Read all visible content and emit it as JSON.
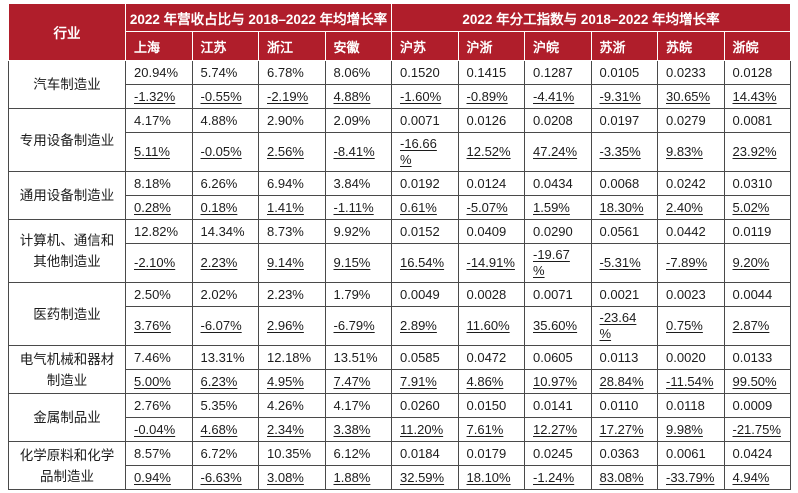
{
  "accent_color": "#b01e2b",
  "border_color": "#4a4a4a",
  "header": {
    "industry_label": "行业",
    "group1": "2022 年营收占比与 2018–2022 年均增长率",
    "group2": "2022 年分工指数与 2018–2022 年均增长率",
    "group1_cols": [
      "上海",
      "江苏",
      "浙江",
      "安徽"
    ],
    "group2_cols": [
      "沪苏",
      "沪浙",
      "沪皖",
      "苏浙",
      "苏皖",
      "浙皖"
    ]
  },
  "chart_data": {
    "type": "table",
    "columns": [
      "行业",
      "上海",
      "江苏",
      "浙江",
      "安徽",
      "沪苏",
      "沪浙",
      "沪皖",
      "苏浙",
      "苏皖",
      "浙皖"
    ],
    "row_semantics": "each industry has two rows: values = 2022 share/index, growth = 2018-2022 CAGR (underlined)",
    "rows": [
      {
        "industry": "汽车制造业",
        "values": [
          "20.94%",
          "5.74%",
          "6.78%",
          "8.06%",
          "0.1520",
          "0.1415",
          "0.1287",
          "0.0105",
          "0.0233",
          "0.0128"
        ],
        "growth": [
          "-1.32%",
          "-0.55%",
          "-2.19%",
          "4.88%",
          "-1.60%",
          "-0.89%",
          "-4.41%",
          "-9.31%",
          "30.65%",
          "14.43%"
        ]
      },
      {
        "industry": "专用设备制造业",
        "values": [
          "4.17%",
          "4.88%",
          "2.90%",
          "2.09%",
          "0.0071",
          "0.0126",
          "0.0208",
          "0.0197",
          "0.0279",
          "0.0081"
        ],
        "growth": [
          "5.11%",
          "-0.05%",
          "2.56%",
          "-8.41%",
          "-16.66\n%",
          "12.52%",
          "47.24%",
          "-3.35%",
          "9.83%",
          "23.92%"
        ]
      },
      {
        "industry": "通用设备制造业",
        "values": [
          "8.18%",
          "6.26%",
          "6.94%",
          "3.84%",
          "0.0192",
          "0.0124",
          "0.0434",
          "0.0068",
          "0.0242",
          "0.0310"
        ],
        "growth": [
          "0.28%",
          "0.18%",
          "1.41%",
          "-1.11%",
          "0.61%",
          "-5.07%",
          "1.59%",
          "18.30%",
          "2.40%",
          "5.02%"
        ]
      },
      {
        "industry": "计算机、通信和其他制造业",
        "values": [
          "12.82%",
          "14.34%",
          "8.73%",
          "9.92%",
          "0.0152",
          "0.0409",
          "0.0290",
          "0.0561",
          "0.0442",
          "0.0119"
        ],
        "growth": [
          "-2.10%",
          "2.23%",
          "9.14%",
          "9.15%",
          "16.54%",
          "-14.91%",
          "-19.67\n%",
          "-5.31%",
          "-7.89%",
          "9.20%"
        ]
      },
      {
        "industry": "医药制造业",
        "values": [
          "2.50%",
          "2.02%",
          "2.23%",
          "1.79%",
          "0.0049",
          "0.0028",
          "0.0071",
          "0.0021",
          "0.0023",
          "0.0044"
        ],
        "growth": [
          "3.76%",
          "-6.07%",
          "2.96%",
          "-6.79%",
          "2.89%",
          "11.60%",
          "35.60%",
          "-23.64\n%",
          "0.75%",
          "2.87%"
        ]
      },
      {
        "industry": "电气机械和器材制造业",
        "values": [
          "7.46%",
          "13.31%",
          "12.18%",
          "13.51%",
          "0.0585",
          "0.0472",
          "0.0605",
          "0.0113",
          "0.0020",
          "0.0133"
        ],
        "growth": [
          "5.00%",
          "6.23%",
          "4.95%",
          "7.47%",
          "7.91%",
          "4.86%",
          "10.97%",
          "28.84%",
          "-11.54%",
          "99.50%"
        ]
      },
      {
        "industry": "金属制品业",
        "values": [
          "2.76%",
          "5.35%",
          "4.26%",
          "4.17%",
          "0.0260",
          "0.0150",
          "0.0141",
          "0.0110",
          "0.0118",
          "0.0009"
        ],
        "growth": [
          "-0.04%",
          "4.68%",
          "2.34%",
          "3.38%",
          "11.20%",
          "7.61%",
          "12.27%",
          "17.27%",
          "9.98%",
          "-21.75%"
        ]
      },
      {
        "industry": "化学原料和化学品制造业",
        "values": [
          "8.57%",
          "6.72%",
          "10.35%",
          "6.12%",
          "0.0184",
          "0.0179",
          "0.0245",
          "0.0363",
          "0.0061",
          "0.0424"
        ],
        "growth": [
          "0.94%",
          "-6.63%",
          "3.08%",
          "1.88%",
          "32.59%",
          "18.10%",
          "-1.24%",
          "83.08%",
          "-33.79%",
          "4.94%"
        ]
      }
    ]
  }
}
